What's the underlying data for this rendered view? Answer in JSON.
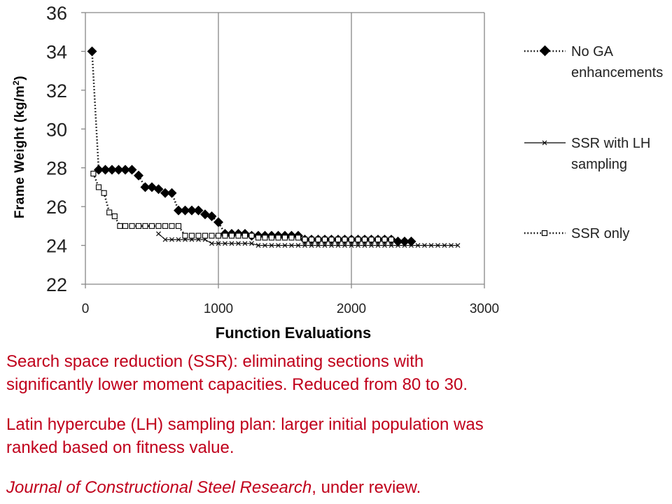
{
  "chart_data": {
    "type": "scatter",
    "xlabel": "Function Evaluations",
    "ylabel": "Frame Weight (kg/m",
    "ylabel_sup": "2",
    "ylabel_close": ")",
    "xlim": [
      0,
      3000
    ],
    "ylim": [
      22,
      36
    ],
    "x_ticks": [
      "0",
      "1000",
      "2000",
      "3000"
    ],
    "y_ticks": [
      "22",
      "24",
      "26",
      "28",
      "30",
      "32",
      "34",
      "36"
    ],
    "grid": "vertical",
    "legend_position": "right",
    "series": [
      {
        "name": "No GA enhancements",
        "marker": "diamond",
        "line": "dotted",
        "x": [
          50,
          100,
          150,
          200,
          250,
          300,
          350,
          400,
          450,
          500,
          550,
          600,
          650,
          700,
          750,
          800,
          850,
          900,
          950,
          1000,
          1050,
          1100,
          1150,
          1200,
          1250,
          1300,
          1350,
          1400,
          1450,
          1500,
          1550,
          1600,
          1650,
          1700,
          1750,
          1800,
          1850,
          1900,
          1950,
          2000,
          2050,
          2100,
          2150,
          2200,
          2250,
          2300,
          2350,
          2400,
          2450
        ],
        "y": [
          34.0,
          27.9,
          27.9,
          27.9,
          27.9,
          27.9,
          27.9,
          27.6,
          27.0,
          27.0,
          26.9,
          26.7,
          26.7,
          25.8,
          25.8,
          25.8,
          25.8,
          25.6,
          25.5,
          25.2,
          24.6,
          24.6,
          24.6,
          24.6,
          24.5,
          24.5,
          24.5,
          24.5,
          24.5,
          24.5,
          24.5,
          24.5,
          24.3,
          24.3,
          24.3,
          24.3,
          24.3,
          24.3,
          24.3,
          24.3,
          24.3,
          24.3,
          24.3,
          24.3,
          24.3,
          24.3,
          24.2,
          24.2,
          24.2
        ]
      },
      {
        "name": "SSR with LH sampling",
        "marker": "x",
        "line": "solid",
        "x": [
          550,
          600,
          650,
          700,
          750,
          800,
          850,
          900,
          950,
          1000,
          1050,
          1100,
          1150,
          1200,
          1250,
          1300,
          1350,
          1400,
          1450,
          1500,
          1550,
          1600,
          1650,
          1700,
          1750,
          1800,
          1850,
          1900,
          1950,
          2000,
          2050,
          2100,
          2150,
          2200,
          2250,
          2300,
          2350,
          2400,
          2450,
          2500,
          2550,
          2600,
          2650,
          2700,
          2750,
          2800
        ],
        "y": [
          24.6,
          24.3,
          24.3,
          24.3,
          24.3,
          24.3,
          24.3,
          24.3,
          24.1,
          24.1,
          24.1,
          24.1,
          24.1,
          24.1,
          24.1,
          24.0,
          24.0,
          24.0,
          24.0,
          24.0,
          24.0,
          24.0,
          24.0,
          24.0,
          24.0,
          24.0,
          24.0,
          24.0,
          24.0,
          24.0,
          24.0,
          24.0,
          24.0,
          24.0,
          24.0,
          24.0,
          24.0,
          24.0,
          24.0,
          24.0,
          24.0,
          24.0,
          24.0,
          24.0,
          24.0,
          24.0
        ]
      },
      {
        "name": "SSR only",
        "marker": "square",
        "line": "dotted",
        "x": [
          60,
          100,
          140,
          180,
          220,
          260,
          300,
          350,
          400,
          450,
          500,
          550,
          600,
          650,
          700,
          750,
          800,
          850,
          900,
          950,
          1000,
          1050,
          1100,
          1150,
          1200,
          1250,
          1300,
          1350,
          1400,
          1450,
          1500,
          1550,
          1600,
          1650,
          1700,
          1750,
          1800,
          1850,
          1900,
          1950,
          2000,
          2050,
          2100,
          2150,
          2200,
          2250,
          2300
        ],
        "y": [
          27.7,
          27.0,
          26.7,
          25.7,
          25.5,
          25.0,
          25.0,
          25.0,
          25.0,
          25.0,
          25.0,
          25.0,
          25.0,
          25.0,
          25.0,
          24.5,
          24.5,
          24.5,
          24.5,
          24.5,
          24.5,
          24.5,
          24.5,
          24.5,
          24.5,
          24.5,
          24.4,
          24.4,
          24.4,
          24.4,
          24.4,
          24.4,
          24.4,
          24.3,
          24.3,
          24.3,
          24.3,
          24.3,
          24.3,
          24.3,
          24.3,
          24.3,
          24.3,
          24.3,
          24.3,
          24.3,
          24.3
        ]
      }
    ],
    "legend": {
      "no_ga_line1": "No GA",
      "no_ga_line2": "enhancements",
      "lh_line1": "SSR with LH",
      "lh_line2": "sampling",
      "ssr_line1": "SSR only"
    }
  },
  "captions": {
    "p1_line1": "Search space reduction (SSR): eliminating sections with",
    "p1_line2": "significantly lower moment capacities. Reduced from 80 to 30.",
    "p2_line1": "Latin hypercube (LH) sampling plan: larger initial population was",
    "p2_line2": "ranked based on fitness value.",
    "p3_italic": "Journal of Constructional Steel Research",
    "p3_rest": ", under review."
  },
  "colors": {
    "caption": "#c0001b",
    "grid": "#878787",
    "series": "#000000"
  }
}
